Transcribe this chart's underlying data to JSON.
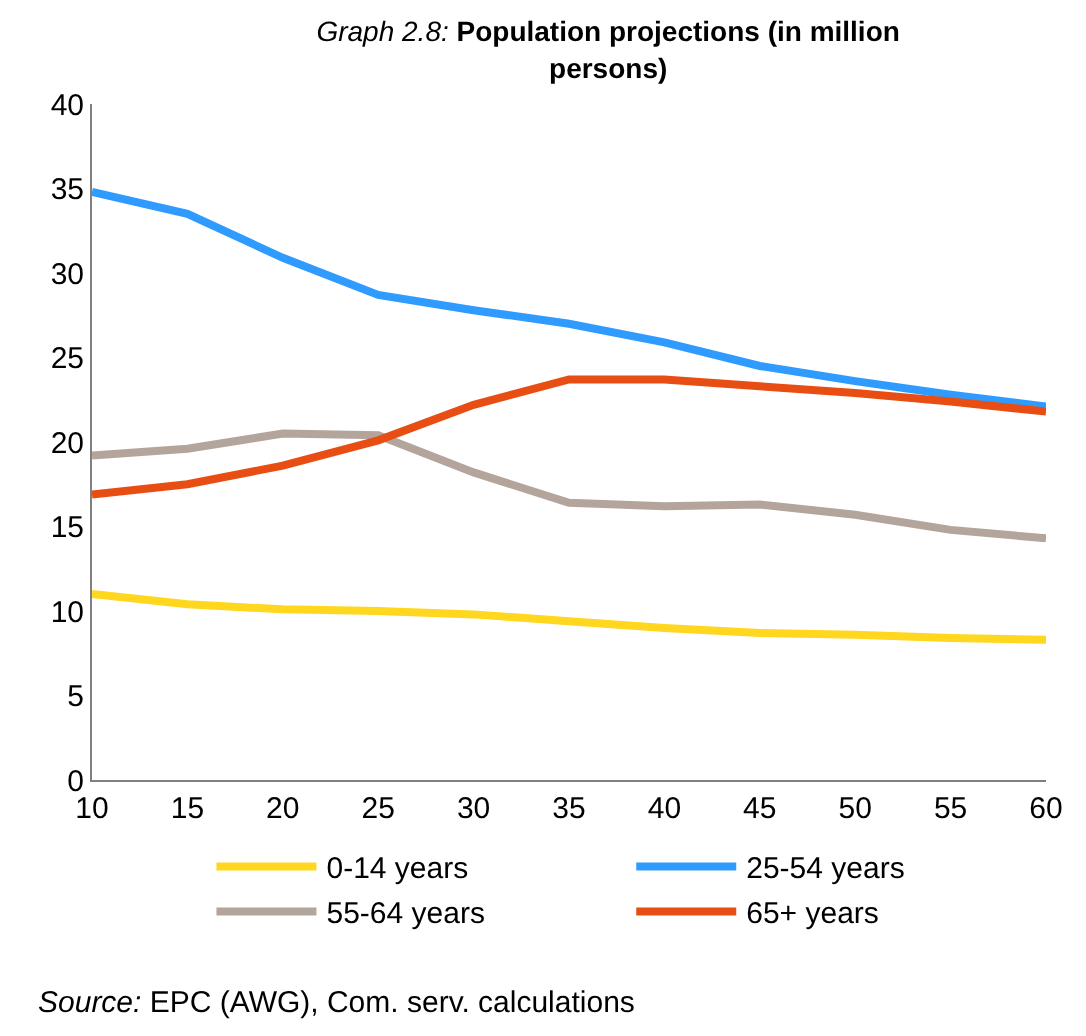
{
  "chart_data": {
    "type": "line",
    "title": "Graph 2.8: Population projections (in million persons)",
    "x": [
      10,
      15,
      20,
      25,
      30,
      35,
      40,
      45,
      50,
      55,
      60
    ],
    "xlim": [
      10,
      60
    ],
    "xticks": [
      10,
      15,
      20,
      25,
      30,
      35,
      40,
      45,
      50,
      55,
      60
    ],
    "ylim": [
      0,
      40
    ],
    "yticks": [
      0,
      5,
      10,
      15,
      20,
      25,
      30,
      35,
      40
    ],
    "grid": false,
    "legend": "bottom",
    "marker": "none",
    "line_style": "solid",
    "annotations": [
      "Source: EPC (AWG), Com. serv. calculations"
    ],
    "series": [
      {
        "name": "0-14 years",
        "color": "#ffd71e",
        "values": [
          11.0,
          10.4,
          10.1,
          10.0,
          9.8,
          9.4,
          9.0,
          8.7,
          8.6,
          8.4,
          8.3
        ]
      },
      {
        "name": "25-54 years",
        "color": "#2f9bff",
        "values": [
          34.8,
          33.5,
          30.9,
          28.7,
          27.8,
          27.0,
          25.9,
          24.5,
          23.6,
          22.8,
          22.1
        ]
      },
      {
        "name": "55-64 years",
        "color": "#b3a59c",
        "values": [
          19.2,
          19.6,
          20.5,
          20.4,
          18.2,
          16.4,
          16.2,
          16.3,
          15.7,
          14.8,
          14.3
        ]
      },
      {
        "name": "65+ years",
        "color": "#e84e14",
        "values": [
          16.9,
          17.5,
          18.6,
          20.1,
          22.2,
          23.7,
          23.7,
          23.3,
          22.9,
          22.4,
          21.8
        ]
      }
    ]
  }
}
